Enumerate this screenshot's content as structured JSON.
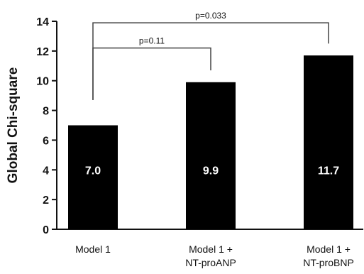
{
  "chart_data": {
    "type": "bar",
    "ylabel": "Global Chi-square",
    "xlabel": "",
    "title": "",
    "ylim": [
      0,
      14
    ],
    "yticks": [
      0,
      2,
      4,
      6,
      8,
      10,
      12,
      14
    ],
    "categories": [
      [
        "Model 1"
      ],
      [
        "Model 1 +",
        "NT-proANP"
      ],
      [
        "Model 1 +",
        "NT-proBNP"
      ]
    ],
    "values": [
      7.0,
      9.9,
      11.7
    ],
    "data_labels": [
      "7.0",
      "9.9",
      "11.7"
    ],
    "bar_color": "#000000",
    "grid": false,
    "annotations": [
      {
        "from": 0,
        "to": 1,
        "text": "p=0.11",
        "level": 12.2
      },
      {
        "from": 0,
        "to": 2,
        "text": "p=0.033",
        "level": 13.9
      }
    ]
  }
}
